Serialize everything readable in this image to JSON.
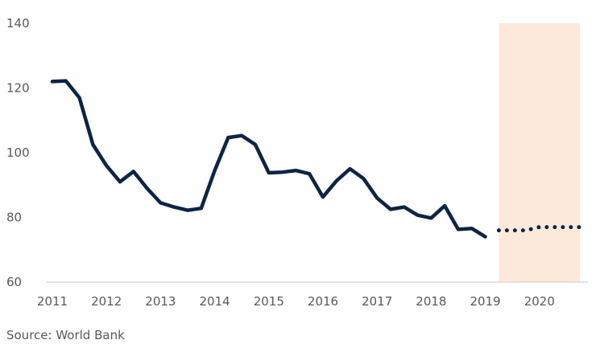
{
  "chart_data": {
    "type": "line",
    "title": "",
    "xlabel": "",
    "ylabel": "",
    "ylim": [
      60,
      140
    ],
    "y_ticks": [
      "60",
      "80",
      "100",
      "120",
      "140"
    ],
    "x_ticks": [
      "2011",
      "2012",
      "2013",
      "2014",
      "2015",
      "2016",
      "2017",
      "2018",
      "2019",
      "2020"
    ],
    "grid": false,
    "legend": "none",
    "source": "Source: World Bank",
    "colors": {
      "line": "#0d2444",
      "forecast_band": "#fde9da",
      "axis": "#d9d9d9",
      "text": "#595959"
    },
    "forecast_band": {
      "x_start": 2019.25,
      "x_end": 2020.75
    },
    "series": [
      {
        "style": "solid",
        "x": [
          2011.0,
          2011.25,
          2011.5,
          2011.75,
          2012.0,
          2012.25,
          2012.5,
          2012.75,
          2013.0,
          2013.25,
          2013.5,
          2013.75,
          2014.0,
          2014.25,
          2014.5,
          2014.75,
          2015.0,
          2015.25,
          2015.5,
          2015.75,
          2016.0,
          2016.25,
          2016.5,
          2016.75,
          2017.0,
          2017.25,
          2017.5,
          2017.75,
          2018.0,
          2018.25,
          2018.5,
          2018.75,
          2019.0
        ],
        "y": [
          122,
          122.2,
          117,
          102.5,
          96,
          91,
          94.2,
          89,
          84.5,
          83.2,
          82.2,
          82.8,
          94.5,
          104.7,
          105.3,
          102.5,
          93.8,
          94,
          94.5,
          93.5,
          86.3,
          91.3,
          95,
          92,
          86,
          82.5,
          83.2,
          80.7,
          79.8,
          83.6,
          76.3,
          76.6,
          74
        ]
      },
      {
        "style": "dotted",
        "x": [
          2019.25,
          2019.5,
          2019.75,
          2020.0,
          2020.25,
          2020.5,
          2020.75
        ],
        "y": [
          76,
          76,
          76,
          77,
          77,
          77,
          77
        ]
      }
    ]
  }
}
